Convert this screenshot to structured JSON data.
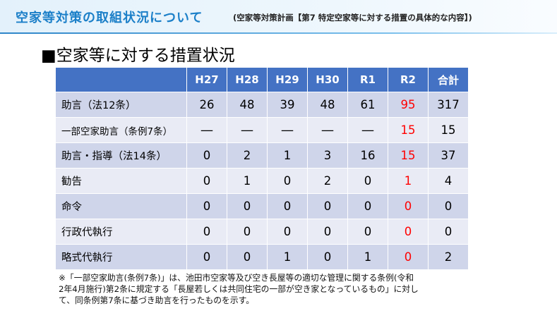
{
  "header": {
    "title": "空家等対策の取組状況について",
    "subtitle": "(空家等対策計画【第7 特定空家等に対する措置の具体的な内容】)"
  },
  "section_heading": "■空家等に対する措置状況",
  "table": {
    "corner": "",
    "columns": [
      "H27",
      "H28",
      "H29",
      "H30",
      "R1",
      "R2",
      "合計"
    ],
    "rows": [
      {
        "label": "助言（法12条）",
        "values": [
          "26",
          "48",
          "39",
          "48",
          "61",
          "95",
          "317"
        ]
      },
      {
        "label": "一部空家助言（条例7条）",
        "values": [
          "―",
          "―",
          "―",
          "―",
          "―",
          "15",
          "15"
        ]
      },
      {
        "label": "助言・指導（法14条）",
        "values": [
          "0",
          "2",
          "1",
          "3",
          "16",
          "15",
          "37"
        ]
      },
      {
        "label": "勧告",
        "values": [
          "0",
          "1",
          "0",
          "2",
          "0",
          "1",
          "4"
        ]
      },
      {
        "label": "命令",
        "values": [
          "0",
          "0",
          "0",
          "0",
          "0",
          "0",
          "0"
        ]
      },
      {
        "label": "行政代執行",
        "values": [
          "0",
          "0",
          "0",
          "0",
          "0",
          "0",
          "0"
        ]
      },
      {
        "label": "略式代執行",
        "values": [
          "0",
          "0",
          "1",
          "0",
          "1",
          "0",
          "2"
        ]
      }
    ],
    "highlight_color": "#ff0000"
  },
  "note": {
    "line1": "※「一部空家助言(条例7条)」は、池田市空家等及び空き長屋等の適切な管理に関する条例(令和",
    "line2": "2年4月施行)第2条に規定する「長屋若しくは共同住宅の一部が空き家となっているもの」に対し",
    "line3": "て、同条例第7条に基づき助言を行ったものを示す。"
  },
  "colors": {
    "header_text": "#1b7fc8",
    "table_header_bg": "#4472c4",
    "row_odd_bg": "#cfd5ea",
    "row_even_bg": "#e9ebf5"
  }
}
